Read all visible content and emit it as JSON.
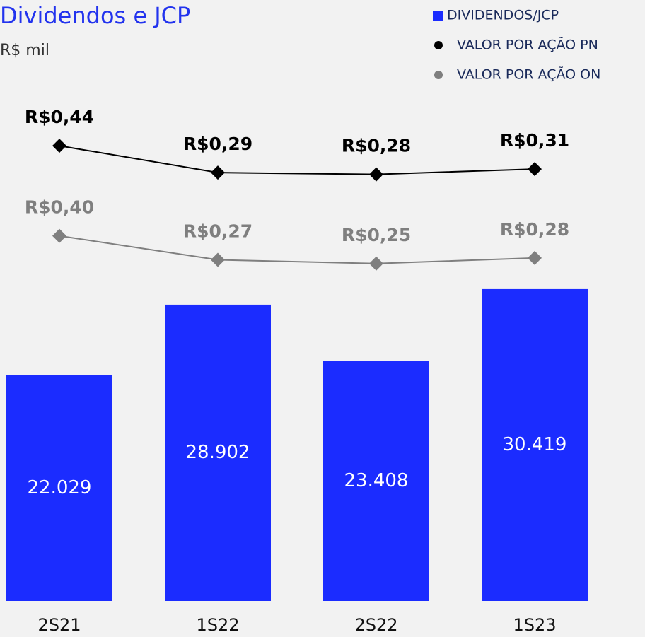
{
  "chart_data": {
    "type": "bar",
    "title": "Dividendos e JCP",
    "subtitle": "R$ mil",
    "categories": [
      "2S21",
      "1S22",
      "2S22",
      "1S23"
    ],
    "ylim": [
      0,
      50000
    ],
    "y2lim": [
      -2.1,
      0.76
    ],
    "y3lim": [
      -1.58,
      1.2
    ],
    "series": [
      {
        "name": "DIVIDENDOS/JCP",
        "type": "bar",
        "color": "#1b2cff",
        "values": [
          22029,
          28902,
          23408,
          30419
        ],
        "value_labels": [
          "22.029",
          "28.902",
          "23.408",
          "30.419"
        ]
      },
      {
        "name": "VALOR POR AÇÃO PN",
        "type": "line",
        "axis": "y2",
        "color": "#000000",
        "values": [
          0.44,
          0.29,
          0.28,
          0.31
        ],
        "value_labels": [
          "R$0,44",
          "R$0,29",
          "R$0,28",
          "R$0,31"
        ]
      },
      {
        "name": "VALOR POR AÇÃO ON",
        "type": "line",
        "axis": "y3",
        "color": "#7f7f7f",
        "values": [
          0.4,
          0.27,
          0.25,
          0.28
        ],
        "value_labels": [
          "R$0,40",
          "R$0,27",
          "R$0,25",
          "R$0,28"
        ]
      }
    ],
    "legend": "top-right"
  }
}
